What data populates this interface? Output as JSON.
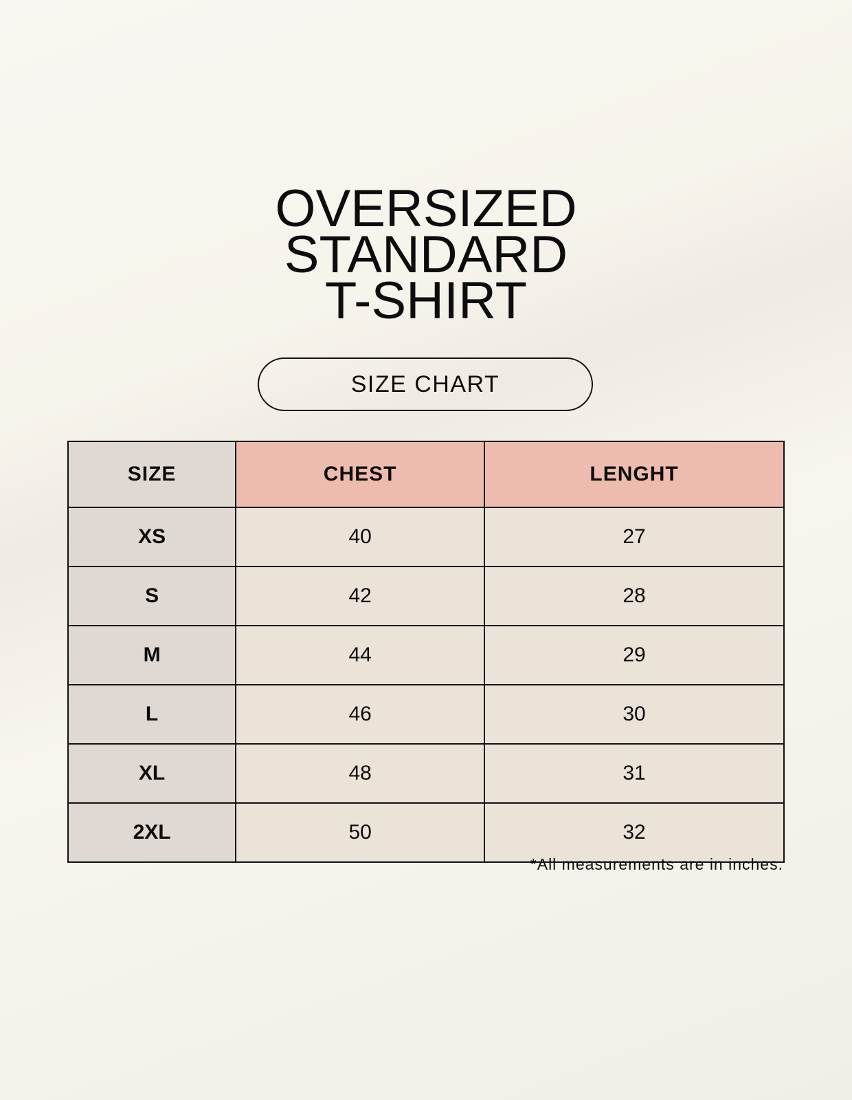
{
  "title_lines": [
    "OVERSIZED",
    "STANDARD",
    "T-SHIRT"
  ],
  "badge": "SIZE CHART",
  "table": {
    "headers": [
      "SIZE",
      "CHEST",
      "LENGHT"
    ],
    "rows": [
      [
        "XS",
        "40",
        "27"
      ],
      [
        "S",
        "42",
        "28"
      ],
      [
        "M",
        "44",
        "29"
      ],
      [
        "L",
        "46",
        "30"
      ],
      [
        "XL",
        "48",
        "31"
      ],
      [
        "2XL",
        "50",
        "32"
      ]
    ]
  },
  "note": "*All measurements are in inches.",
  "colors": {
    "size_column": "#e0d8d2",
    "header_accent": "#eebcae",
    "cell": "#ebe3d8"
  }
}
